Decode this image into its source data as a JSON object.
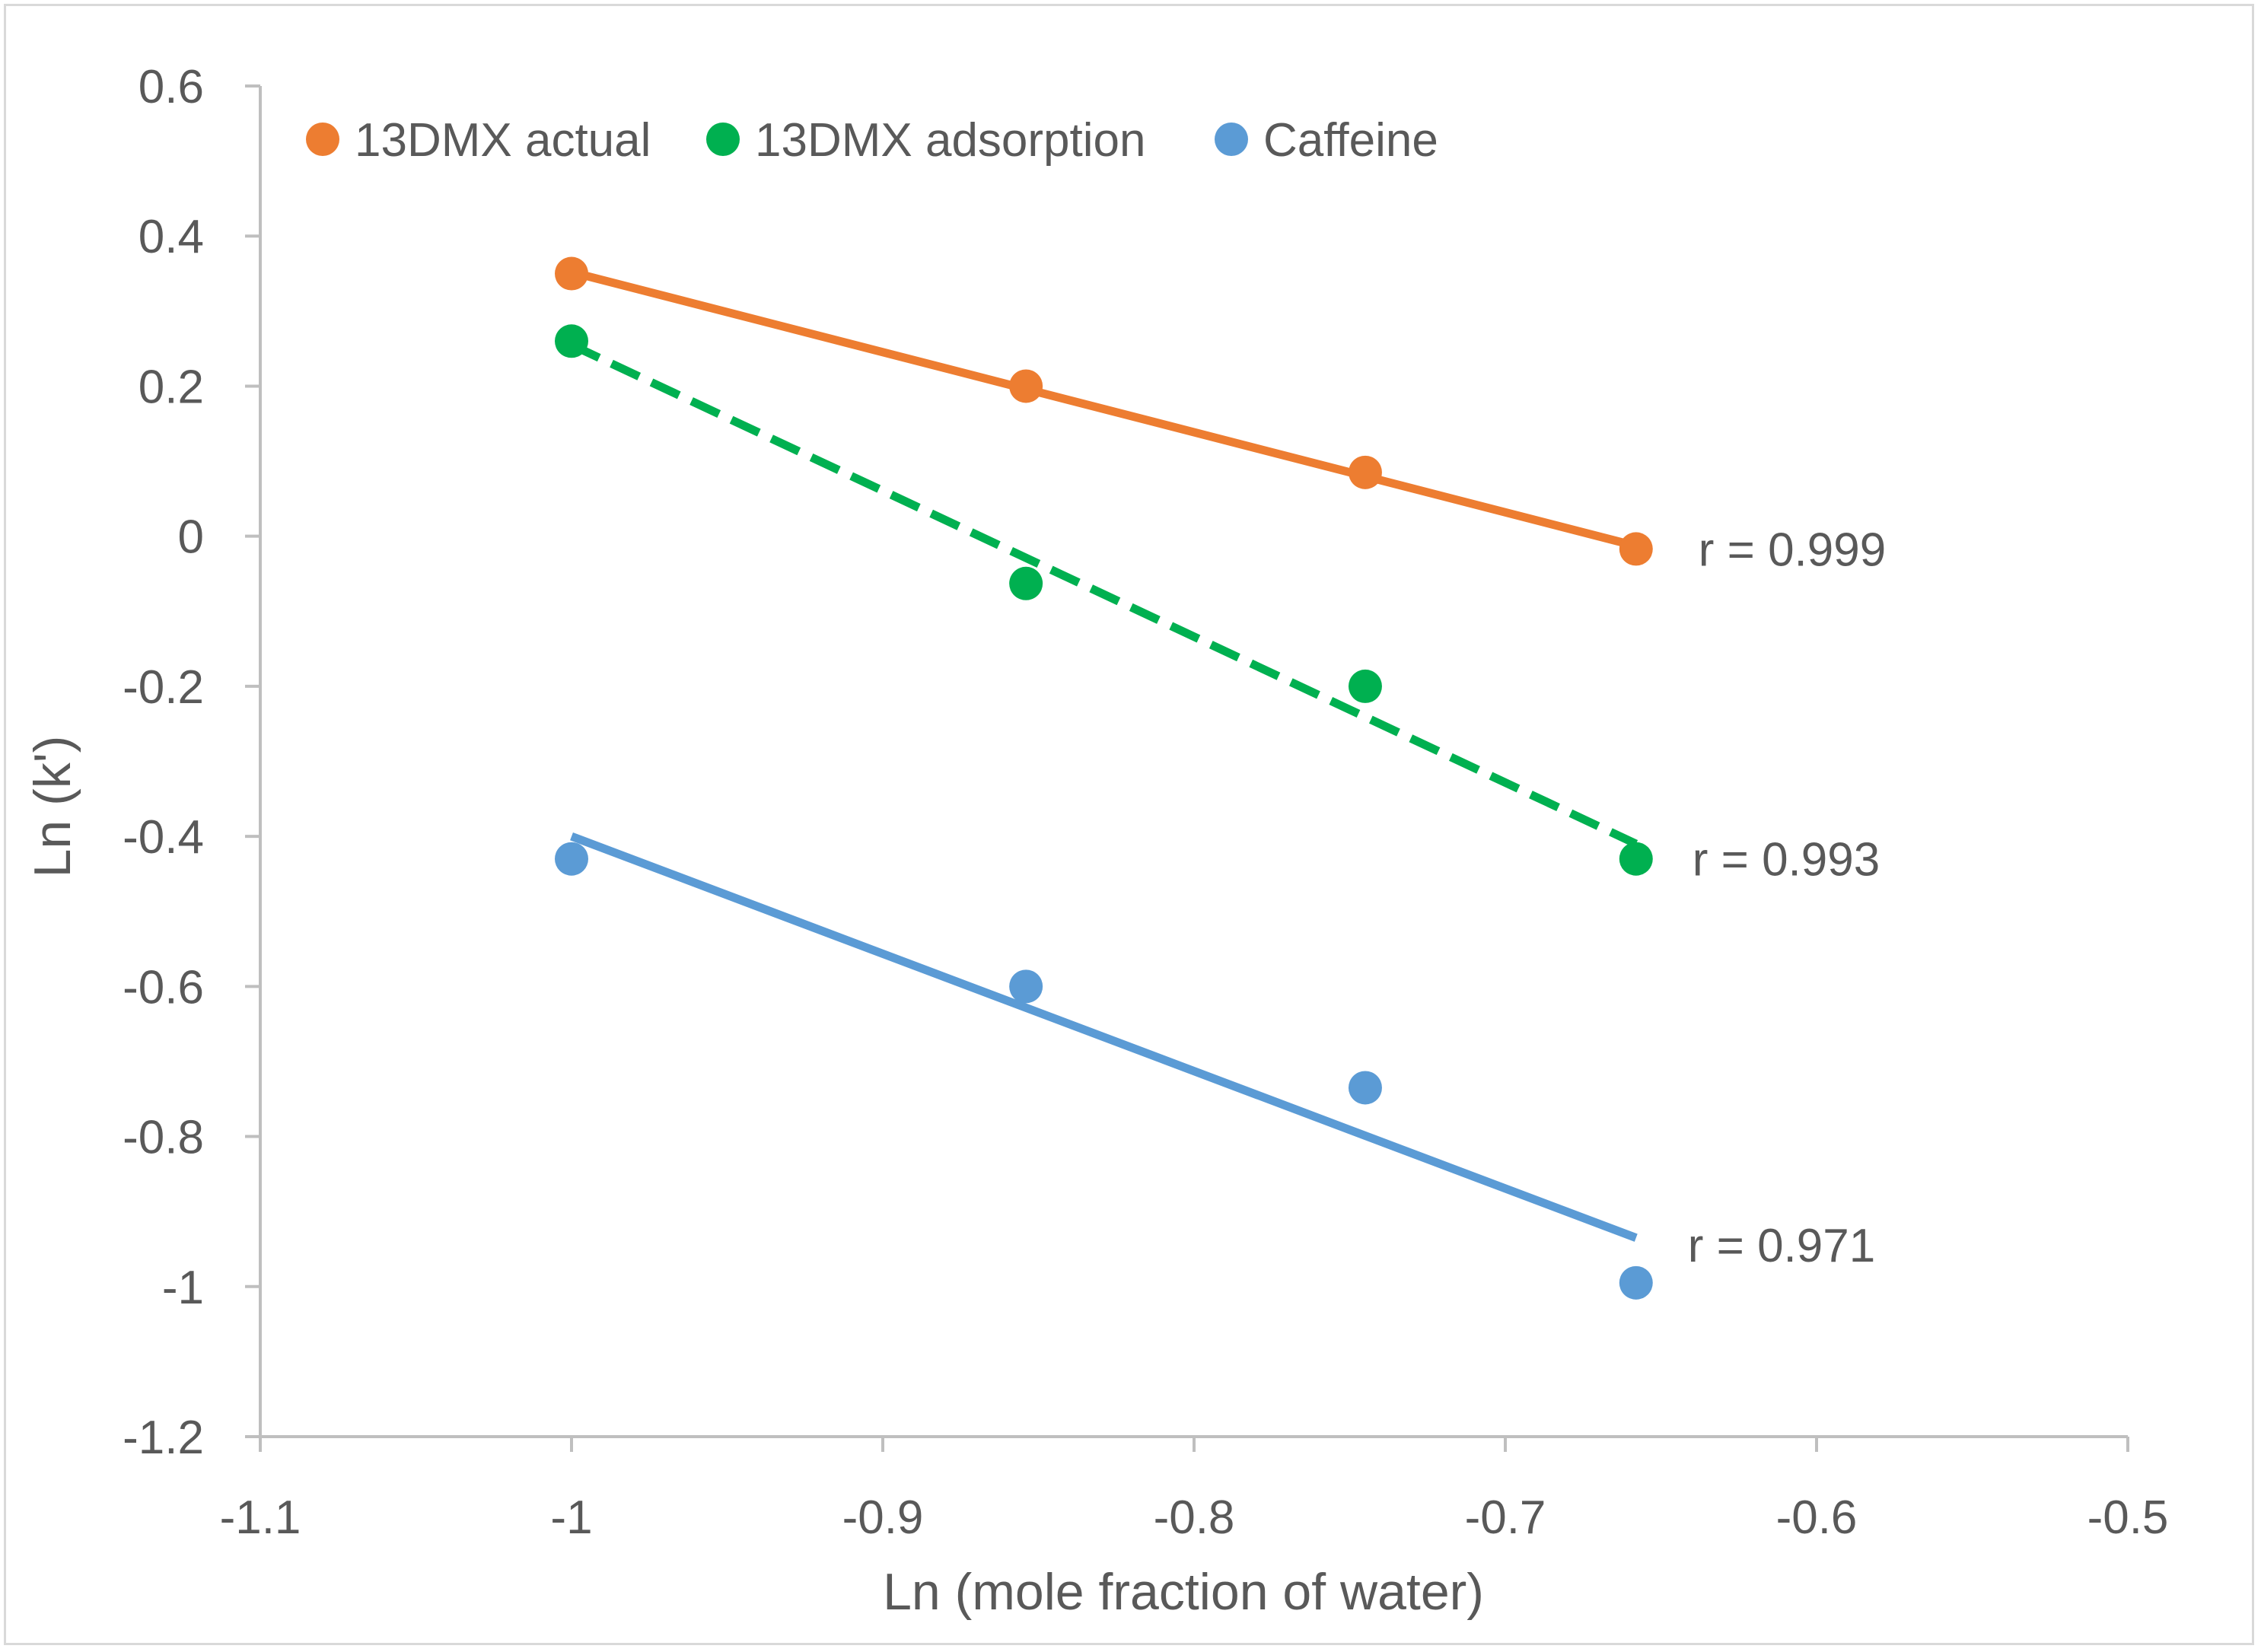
{
  "chart_data": {
    "type": "scatter",
    "title": "",
    "xlabel": "Ln (mole fraction of water)",
    "ylabel": "Ln (k')",
    "xlim": [
      -1.1,
      -0.5
    ],
    "ylim": [
      -1.2,
      0.6
    ],
    "x_ticks": [
      -1.1,
      -1.0,
      -0.9,
      -0.8,
      -0.7,
      -0.6,
      -0.5
    ],
    "x_tick_labels": [
      "-1.1",
      "-1",
      "-0.9",
      "-0.8",
      "-0.7",
      "-0.6",
      "-0.5"
    ],
    "y_ticks": [
      0.6,
      0.4,
      0.2,
      0.0,
      -0.2,
      -0.4,
      -0.6,
      -0.8,
      -1.0,
      -1.2
    ],
    "y_tick_labels": [
      "0.6",
      "0.4",
      "0.2",
      "0",
      "-0.2",
      "-0.4",
      "-0.6",
      "-0.8",
      "-1",
      "-1.2"
    ],
    "grid": false,
    "legend_position": "top-left",
    "series": [
      {
        "name": "13DMX actual",
        "color": "#ed7d31",
        "x": [
          -1.0,
          -0.854,
          -0.745,
          -0.658
        ],
        "y": [
          0.35,
          0.2,
          0.085,
          -0.017
        ],
        "trendline": {
          "x": [
            -1.0,
            -0.658
          ],
          "y": [
            0.352,
            -0.013
          ],
          "style": "solid"
        },
        "annotation": "r = 0.999"
      },
      {
        "name": "13DMX adsorption",
        "color": "#00b050",
        "x": [
          -1.0,
          -0.854,
          -0.745,
          -0.658
        ],
        "y": [
          0.26,
          -0.063,
          -0.2,
          -0.43
        ],
        "trendline": {
          "x": [
            -1.0,
            -0.658
          ],
          "y": [
            0.255,
            -0.41
          ],
          "style": "dashed"
        },
        "annotation": "r = 0.993"
      },
      {
        "name": "Caffeine",
        "color": "#5b9bd5",
        "x": [
          -1.0,
          -0.854,
          -0.745,
          -0.658
        ],
        "y": [
          -0.43,
          -0.6,
          -0.735,
          -0.995
        ],
        "trendline": {
          "x": [
            -1.0,
            -0.658
          ],
          "y": [
            -0.4,
            -0.935
          ],
          "style": "solid"
        },
        "annotation": "r = 0.971"
      }
    ]
  }
}
